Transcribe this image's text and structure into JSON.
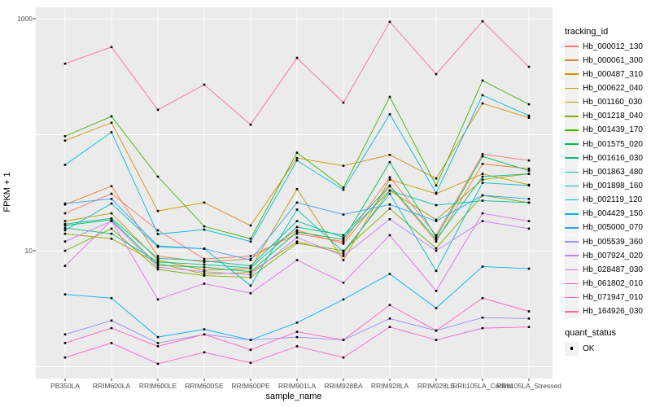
{
  "figure": {
    "y_axis": {
      "label": "FPKM + 1",
      "tick_labels": [
        "1000",
        "10"
      ],
      "tick_values": [
        1000,
        10
      ]
    },
    "x_axis": {
      "label": "sample_name"
    },
    "legend": {
      "tracking_title": "tracking_id",
      "quant_title": "quant_status",
      "quant_ok_label": "OK"
    },
    "colors": {
      "panel_bg": "#EBEBEB",
      "grid": "#FFFFFF",
      "tick_text": "#4D4D4D",
      "marker": "#000000",
      "legend_key_bg": "#F2F2F2"
    }
  },
  "chart_data": {
    "type": "line",
    "yscale": "log10",
    "ylim": [
      1,
      1000
    ],
    "grid_values": [
      1,
      10,
      100,
      1000
    ],
    "labeled_tick_values": [
      10,
      1000
    ],
    "legend_position": "right",
    "marker": "small-black-square",
    "x_categories": [
      "PB350LA",
      "RRIM600LA",
      "RRIM600LE",
      "RRIM600SE",
      "RRIM600PE",
      "RRIM901LA",
      "RRIM928BA",
      "RRIM928LA",
      "RRIM928LE",
      "RRII105LA_Control",
      "RRII105LA_Stressed"
    ],
    "series": [
      {
        "name": "Hb_000012_130",
        "color": "#F8766D",
        "values": [
          21,
          31,
          15,
          8.5,
          9,
          14,
          12,
          43,
          13.6,
          68,
          60
        ]
      },
      {
        "name": "Hb_000061_300",
        "color": "#EA8331",
        "values": [
          25,
          36,
          9,
          8,
          8.5,
          15,
          11.5,
          36,
          12,
          56,
          51
        ]
      },
      {
        "name": "Hb_000487_310",
        "color": "#D89000",
        "values": [
          89,
          127,
          22,
          26,
          16.5,
          63,
          54,
          67,
          42,
          186,
          140
        ]
      },
      {
        "name": "Hb_000622_040",
        "color": "#C49A00",
        "values": [
          18,
          21,
          8.3,
          6.8,
          7,
          34,
          8.3,
          41,
          31,
          46,
          37
        ]
      },
      {
        "name": "Hb_001160_030",
        "color": "#A3A500",
        "values": [
          14,
          12.7,
          7.8,
          6.3,
          6.5,
          12,
          9.4,
          33,
          18.5,
          41,
          46
        ]
      },
      {
        "name": "Hb_001218_040",
        "color": "#7CAE00",
        "values": [
          10,
          15.5,
          6.9,
          6.1,
          5.9,
          11.6,
          10,
          23,
          10.5,
          30,
          26
        ]
      },
      {
        "name": "Hb_001439_170",
        "color": "#39B600",
        "values": [
          97,
          144,
          43.5,
          16.2,
          12.7,
          70,
          35,
          212,
          36.5,
          293,
          183
        ]
      },
      {
        "name": "Hb_001575_020",
        "color": "#00BB4E",
        "values": [
          16.5,
          18.5,
          7.5,
          7.2,
          6.6,
          14.5,
          12.5,
          58,
          13,
          65,
          49
        ]
      },
      {
        "name": "Hb_001616_030",
        "color": "#00BF7D",
        "values": [
          15.7,
          14,
          8,
          7.6,
          7.1,
          16,
          13.6,
          36.5,
          12.5,
          43.5,
          46
        ]
      },
      {
        "name": "Hb_001863_480",
        "color": "#00C1A3",
        "values": [
          17,
          19,
          8.6,
          8.2,
          7.4,
          18,
          13,
          33,
          24.7,
          27,
          26
        ]
      },
      {
        "name": "Hb_001898_160",
        "color": "#00BFC4",
        "values": [
          15,
          25.5,
          10.8,
          10.4,
          5,
          22.6,
          9.8,
          31,
          6.7,
          38.5,
          36.5
        ]
      },
      {
        "name": "Hb_002119_120",
        "color": "#00BAE0",
        "values": [
          55,
          105,
          13.9,
          15.2,
          12,
          60,
          33.5,
          150,
          31.5,
          219,
          146
        ]
      },
      {
        "name": "Hb_004429_150",
        "color": "#00B0F6",
        "values": [
          4.2,
          3.9,
          1.8,
          2.1,
          1.7,
          2.4,
          3.8,
          6.3,
          3.2,
          7.3,
          7.0
        ]
      },
      {
        "name": "Hb_005000_070",
        "color": "#2FA3FF",
        "values": [
          25.5,
          28,
          11,
          10.4,
          8.3,
          26,
          20.5,
          25,
          18,
          30,
          28
        ]
      },
      {
        "name": "Hb_005539_360",
        "color": "#9590FF",
        "values": [
          1.9,
          2.5,
          1.6,
          1.9,
          1.7,
          1.8,
          1.7,
          2.6,
          2.05,
          2.65,
          2.6
        ]
      },
      {
        "name": "Hb_007924_020",
        "color": "#C77CFF",
        "values": [
          12,
          18,
          7.2,
          6.6,
          6.2,
          13,
          9,
          18.7,
          10,
          18,
          15.5
        ]
      },
      {
        "name": "Hb_028487_030",
        "color": "#E76BF3",
        "values": [
          7.4,
          18.2,
          3.8,
          5.2,
          4.3,
          8.3,
          5.3,
          13.6,
          4.5,
          21,
          18
        ]
      },
      {
        "name": "Hb_061802_010",
        "color": "#FA62DB",
        "values": [
          1.2,
          1.6,
          1.06,
          1.33,
          1.08,
          1.5,
          1.2,
          2.2,
          1.7,
          2.15,
          2.2
        ]
      },
      {
        "name": "Hb_071947_010",
        "color": "#FF62BC",
        "values": [
          1.6,
          2.15,
          1.5,
          1.9,
          1.4,
          2.0,
          1.7,
          3.4,
          2.05,
          3.9,
          3.0
        ]
      },
      {
        "name": "Hb_164926_030",
        "color": "#FF6A9A",
        "values": [
          410,
          570,
          164,
          270,
          122,
          460,
          189,
          940,
          333,
          950,
          385
        ]
      }
    ]
  }
}
